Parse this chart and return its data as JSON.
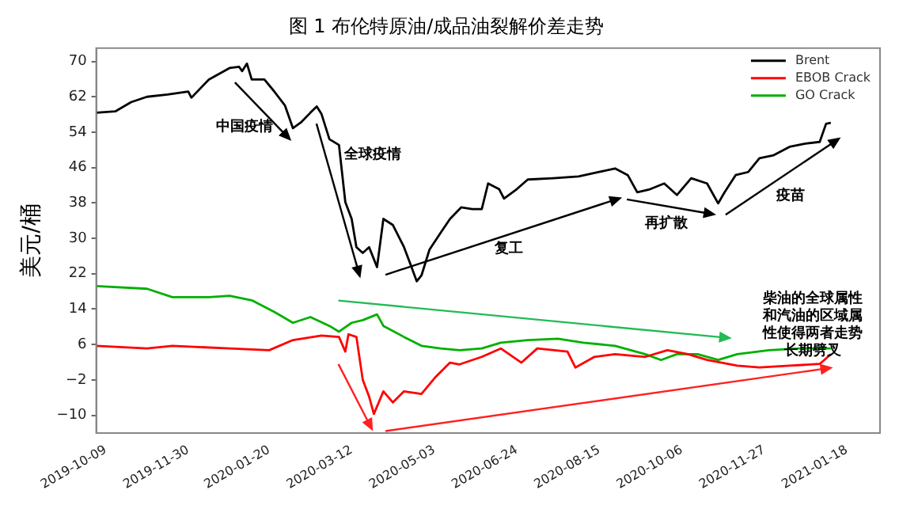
{
  "chart_data": {
    "type": "line",
    "title": "图 1 布伦特原油/成品油裂解价差走势",
    "ylabel": "美元/桶",
    "xlim": [
      "2019-10-03",
      "2021-02-08"
    ],
    "xticks": [
      "2019-10-09",
      "2019-11-30",
      "2020-01-20",
      "2020-03-12",
      "2020-05-03",
      "2020-06-24",
      "2020-08-15",
      "2020-10-06",
      "2020-11-27",
      "2021-01-18"
    ],
    "ylim": [
      -14,
      73
    ],
    "yticks": [
      {
        "value": -10,
        "label": "−10"
      },
      {
        "value": -2,
        "label": "−2"
      },
      6,
      14,
      22,
      30,
      38,
      46,
      54,
      62,
      70
    ],
    "grid": false,
    "legend": "top right",
    "marker": "none",
    "line_style": "solid",
    "series": [
      {
        "name": "Brent",
        "color": "#000000",
        "x": [
          "2019-10-03",
          "2019-10-15",
          "2019-10-25",
          "2019-11-04",
          "2019-11-17",
          "2019-11-30",
          "2019-12-02",
          "2019-12-13",
          "2019-12-26",
          "2020-01-01",
          "2020-01-03",
          "2020-01-06",
          "2020-01-09",
          "2020-01-17",
          "2020-01-23",
          "2020-01-30",
          "2020-02-04",
          "2020-02-09",
          "2020-02-15",
          "2020-02-19",
          "2020-02-22",
          "2020-02-27",
          "2020-03-04",
          "2020-03-08",
          "2020-03-12",
          "2020-03-15",
          "2020-03-19",
          "2020-03-23",
          "2020-03-28",
          "2020-04-01",
          "2020-04-07",
          "2020-04-14",
          "2020-04-18",
          "2020-04-22",
          "2020-04-25",
          "2020-04-30",
          "2020-05-07",
          "2020-05-13",
          "2020-05-20",
          "2020-05-27",
          "2020-06-02",
          "2020-06-06",
          "2020-06-13",
          "2020-06-16",
          "2020-06-24",
          "2020-07-01",
          "2020-07-17",
          "2020-08-02",
          "2020-08-15",
          "2020-08-25",
          "2020-09-02",
          "2020-09-08",
          "2020-09-16",
          "2020-09-25",
          "2020-10-03",
          "2020-10-12",
          "2020-10-22",
          "2020-10-29",
          "2020-11-02",
          "2020-11-09",
          "2020-11-17",
          "2020-11-24",
          "2020-12-03",
          "2020-12-13",
          "2020-12-23",
          "2021-01-01",
          "2021-01-05",
          "2021-01-08"
        ],
        "values": [
          58.4,
          58.7,
          60.8,
          62,
          62.5,
          63.2,
          61.8,
          65.9,
          68.5,
          68.8,
          67.8,
          69.5,
          65.9,
          65.9,
          63.3,
          60,
          54.9,
          56.2,
          58.4,
          59.8,
          58.1,
          52.4,
          51.1,
          38.2,
          34.4,
          28,
          26.7,
          28,
          23.5,
          34.4,
          33,
          28,
          24.2,
          20.3,
          21.6,
          27.4,
          31.2,
          34.4,
          37,
          36.6,
          36.6,
          42.4,
          41.1,
          39,
          41.1,
          43.3,
          43.6,
          44,
          45,
          45.8,
          44.3,
          40.4,
          41.1,
          42.4,
          39.8,
          43.6,
          42.4,
          37.9,
          40.4,
          44.3,
          45,
          48.1,
          48.8,
          50.7,
          51.4,
          51.8,
          55.9,
          56.1
        ]
      },
      {
        "name": "EBOB Crack",
        "color": "#ff0000",
        "x": [
          "2019-10-03",
          "2019-11-04",
          "2019-11-20",
          "2019-12-26",
          "2020-01-20",
          "2020-02-04",
          "2020-02-22",
          "2020-03-04",
          "2020-03-08",
          "2020-03-10",
          "2020-03-15",
          "2020-03-19",
          "2020-03-23",
          "2020-03-26",
          "2020-04-01",
          "2020-04-07",
          "2020-04-14",
          "2020-04-25",
          "2020-05-04",
          "2020-05-13",
          "2020-05-19",
          "2020-06-02",
          "2020-06-14",
          "2020-06-27",
          "2020-07-07",
          "2020-07-26",
          "2020-07-31",
          "2020-08-12",
          "2020-08-25",
          "2020-09-13",
          "2020-09-27",
          "2020-10-10",
          "2020-10-22",
          "2020-11-10",
          "2020-11-24",
          "2020-12-13",
          "2021-01-01",
          "2021-01-08"
        ],
        "values": [
          5.7,
          5.1,
          5.7,
          5.1,
          4.7,
          7,
          8,
          7.7,
          4.4,
          8.3,
          7.7,
          -2,
          -5.8,
          -9.7,
          -4.6,
          -7.1,
          -4.6,
          -5.2,
          -1.3,
          1.9,
          1.5,
          3.2,
          5.1,
          1.9,
          5.1,
          4.4,
          0.8,
          3.2,
          3.8,
          3.2,
          4.7,
          3.8,
          2.5,
          1.2,
          0.8,
          1.2,
          1.6,
          3.8
        ]
      },
      {
        "name": "GO Crack",
        "color": "#00b000",
        "x": [
          "2019-10-03",
          "2019-11-04",
          "2019-11-20",
          "2019-12-13",
          "2019-12-26",
          "2020-01-09",
          "2020-01-23",
          "2020-02-04",
          "2020-02-15",
          "2020-02-27",
          "2020-03-04",
          "2020-03-12",
          "2020-03-19",
          "2020-03-28",
          "2020-04-01",
          "2020-04-14",
          "2020-04-25",
          "2020-05-07",
          "2020-05-19",
          "2020-06-02",
          "2020-06-14",
          "2020-07-01",
          "2020-07-20",
          "2020-08-05",
          "2020-08-25",
          "2020-09-13",
          "2020-09-23",
          "2020-10-03",
          "2020-10-16",
          "2020-10-29",
          "2020-11-10",
          "2020-11-30",
          "2020-12-19",
          "2021-01-08"
        ],
        "values": [
          19.2,
          18.6,
          16.7,
          16.7,
          17,
          16,
          13.4,
          10.9,
          12.2,
          10.2,
          8.9,
          10.9,
          11.5,
          12.8,
          10.2,
          7.7,
          5.7,
          5.1,
          4.7,
          5.1,
          6.4,
          7,
          7.3,
          6.4,
          5.7,
          3.8,
          2.5,
          3.8,
          3.8,
          2.5,
          3.8,
          4.7,
          5.1,
          5.1
        ]
      }
    ],
    "annotations": [
      "中国疫情",
      "全球疫情",
      "复工",
      "再扩散",
      "疫苗",
      "柴油的全球属性和汽油的区域属性使得两者走势长期劈叉"
    ]
  }
}
